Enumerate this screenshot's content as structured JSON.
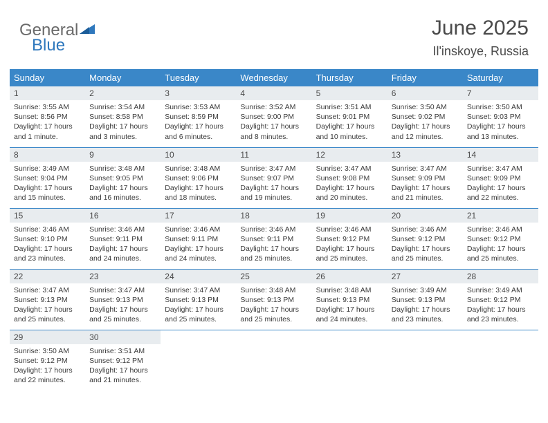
{
  "brand": {
    "part1": "General",
    "part2": "Blue",
    "triangle_color": "#2f78bd"
  },
  "title": "June 2025",
  "location": "Il'inskoye, Russia",
  "colors": {
    "header_bg": "#3a87c8",
    "header_fg": "#ffffff",
    "daynum_bg": "#e8ecef",
    "rule": "#3a87c8",
    "text": "#3a3a3a"
  },
  "weekdays": [
    "Sunday",
    "Monday",
    "Tuesday",
    "Wednesday",
    "Thursday",
    "Friday",
    "Saturday"
  ],
  "weeks": [
    [
      {
        "n": "1",
        "sr": "3:55 AM",
        "ss": "8:56 PM",
        "dl": "17 hours and 1 minute."
      },
      {
        "n": "2",
        "sr": "3:54 AM",
        "ss": "8:58 PM",
        "dl": "17 hours and 3 minutes."
      },
      {
        "n": "3",
        "sr": "3:53 AM",
        "ss": "8:59 PM",
        "dl": "17 hours and 6 minutes."
      },
      {
        "n": "4",
        "sr": "3:52 AM",
        "ss": "9:00 PM",
        "dl": "17 hours and 8 minutes."
      },
      {
        "n": "5",
        "sr": "3:51 AM",
        "ss": "9:01 PM",
        "dl": "17 hours and 10 minutes."
      },
      {
        "n": "6",
        "sr": "3:50 AM",
        "ss": "9:02 PM",
        "dl": "17 hours and 12 minutes."
      },
      {
        "n": "7",
        "sr": "3:50 AM",
        "ss": "9:03 PM",
        "dl": "17 hours and 13 minutes."
      }
    ],
    [
      {
        "n": "8",
        "sr": "3:49 AM",
        "ss": "9:04 PM",
        "dl": "17 hours and 15 minutes."
      },
      {
        "n": "9",
        "sr": "3:48 AM",
        "ss": "9:05 PM",
        "dl": "17 hours and 16 minutes."
      },
      {
        "n": "10",
        "sr": "3:48 AM",
        "ss": "9:06 PM",
        "dl": "17 hours and 18 minutes."
      },
      {
        "n": "11",
        "sr": "3:47 AM",
        "ss": "9:07 PM",
        "dl": "17 hours and 19 minutes."
      },
      {
        "n": "12",
        "sr": "3:47 AM",
        "ss": "9:08 PM",
        "dl": "17 hours and 20 minutes."
      },
      {
        "n": "13",
        "sr": "3:47 AM",
        "ss": "9:09 PM",
        "dl": "17 hours and 21 minutes."
      },
      {
        "n": "14",
        "sr": "3:47 AM",
        "ss": "9:09 PM",
        "dl": "17 hours and 22 minutes."
      }
    ],
    [
      {
        "n": "15",
        "sr": "3:46 AM",
        "ss": "9:10 PM",
        "dl": "17 hours and 23 minutes."
      },
      {
        "n": "16",
        "sr": "3:46 AM",
        "ss": "9:11 PM",
        "dl": "17 hours and 24 minutes."
      },
      {
        "n": "17",
        "sr": "3:46 AM",
        "ss": "9:11 PM",
        "dl": "17 hours and 24 minutes."
      },
      {
        "n": "18",
        "sr": "3:46 AM",
        "ss": "9:11 PM",
        "dl": "17 hours and 25 minutes."
      },
      {
        "n": "19",
        "sr": "3:46 AM",
        "ss": "9:12 PM",
        "dl": "17 hours and 25 minutes."
      },
      {
        "n": "20",
        "sr": "3:46 AM",
        "ss": "9:12 PM",
        "dl": "17 hours and 25 minutes."
      },
      {
        "n": "21",
        "sr": "3:46 AM",
        "ss": "9:12 PM",
        "dl": "17 hours and 25 minutes."
      }
    ],
    [
      {
        "n": "22",
        "sr": "3:47 AM",
        "ss": "9:13 PM",
        "dl": "17 hours and 25 minutes."
      },
      {
        "n": "23",
        "sr": "3:47 AM",
        "ss": "9:13 PM",
        "dl": "17 hours and 25 minutes."
      },
      {
        "n": "24",
        "sr": "3:47 AM",
        "ss": "9:13 PM",
        "dl": "17 hours and 25 minutes."
      },
      {
        "n": "25",
        "sr": "3:48 AM",
        "ss": "9:13 PM",
        "dl": "17 hours and 25 minutes."
      },
      {
        "n": "26",
        "sr": "3:48 AM",
        "ss": "9:13 PM",
        "dl": "17 hours and 24 minutes."
      },
      {
        "n": "27",
        "sr": "3:49 AM",
        "ss": "9:13 PM",
        "dl": "17 hours and 23 minutes."
      },
      {
        "n": "28",
        "sr": "3:49 AM",
        "ss": "9:12 PM",
        "dl": "17 hours and 23 minutes."
      }
    ],
    [
      {
        "n": "29",
        "sr": "3:50 AM",
        "ss": "9:12 PM",
        "dl": "17 hours and 22 minutes."
      },
      {
        "n": "30",
        "sr": "3:51 AM",
        "ss": "9:12 PM",
        "dl": "17 hours and 21 minutes."
      },
      null,
      null,
      null,
      null,
      null
    ]
  ],
  "labels": {
    "sunrise": "Sunrise:",
    "sunset": "Sunset:",
    "daylight": "Daylight:"
  }
}
